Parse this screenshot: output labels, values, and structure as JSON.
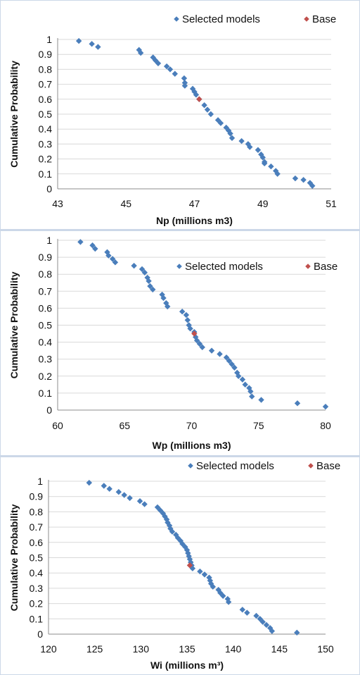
{
  "chart_data": [
    {
      "type": "scatter",
      "xlabel": "Np (millions m3)",
      "ylabel": "Cumulative Probability",
      "xlim": [
        43,
        51
      ],
      "ylim": [
        0,
        1
      ],
      "xticks": [
        "43",
        "45",
        "47",
        "49",
        "51"
      ],
      "yticks": [
        "0",
        "0.1",
        "0.2",
        "0.3",
        "0.4",
        "0.5",
        "0.6",
        "0.7",
        "0.8",
        "0.9",
        "1"
      ],
      "grid": "horizontal",
      "legend_position": "top-right",
      "series": [
        {
          "name": "Selected models",
          "color": "#4a7ebb",
          "points": [
            [
              43.62,
              0.99
            ],
            [
              44.0,
              0.97
            ],
            [
              44.18,
              0.95
            ],
            [
              45.38,
              0.93
            ],
            [
              45.43,
              0.91
            ],
            [
              45.79,
              0.88
            ],
            [
              45.86,
              0.86
            ],
            [
              45.94,
              0.84
            ],
            [
              46.19,
              0.82
            ],
            [
              46.29,
              0.8
            ],
            [
              46.43,
              0.77
            ],
            [
              46.7,
              0.74
            ],
            [
              46.72,
              0.71
            ],
            [
              46.72,
              0.69
            ],
            [
              46.95,
              0.67
            ],
            [
              47.0,
              0.65
            ],
            [
              47.05,
              0.63
            ],
            [
              47.14,
              0.6
            ],
            [
              47.29,
              0.56
            ],
            [
              47.38,
              0.53
            ],
            [
              47.48,
              0.5
            ],
            [
              47.69,
              0.46
            ],
            [
              47.77,
              0.44
            ],
            [
              47.93,
              0.41
            ],
            [
              48.0,
              0.39
            ],
            [
              48.05,
              0.37
            ],
            [
              48.1,
              0.34
            ],
            [
              48.38,
              0.32
            ],
            [
              48.57,
              0.3
            ],
            [
              48.62,
              0.28
            ],
            [
              48.86,
              0.26
            ],
            [
              48.95,
              0.23
            ],
            [
              49.0,
              0.21
            ],
            [
              49.05,
              0.18
            ],
            [
              49.05,
              0.17
            ],
            [
              49.24,
              0.15
            ],
            [
              49.38,
              0.12
            ],
            [
              49.43,
              0.1
            ],
            [
              49.95,
              0.07
            ],
            [
              50.19,
              0.06
            ],
            [
              50.38,
              0.04
            ],
            [
              50.45,
              0.02
            ]
          ]
        },
        {
          "name": "Base",
          "color": "#c0504d",
          "points": [
            [
              47.14,
              0.6
            ]
          ]
        }
      ]
    },
    {
      "type": "scatter",
      "xlabel": "Wp (millions m3)",
      "ylabel": "Cumulative Probability",
      "xlim": [
        60,
        80
      ],
      "ylim": [
        0,
        1
      ],
      "xticks": [
        "60",
        "65",
        "70",
        "75",
        "80"
      ],
      "yticks": [
        "0",
        "0.1",
        "0.2",
        "0.3",
        "0.4",
        "0.5",
        "0.6",
        "0.7",
        "0.8",
        "0.9",
        "1"
      ],
      "grid": "horizontal",
      "legend_position": "top-right",
      "series": [
        {
          "name": "Selected models",
          "color": "#4a7ebb",
          "points": [
            [
              61.7,
              0.99
            ],
            [
              62.6,
              0.97
            ],
            [
              62.8,
              0.95
            ],
            [
              63.7,
              0.93
            ],
            [
              63.8,
              0.91
            ],
            [
              64.1,
              0.89
            ],
            [
              64.3,
              0.87
            ],
            [
              65.7,
              0.85
            ],
            [
              66.3,
              0.83
            ],
            [
              66.5,
              0.81
            ],
            [
              66.7,
              0.78
            ],
            [
              66.8,
              0.76
            ],
            [
              66.9,
              0.73
            ],
            [
              67.1,
              0.71
            ],
            [
              67.8,
              0.68
            ],
            [
              67.9,
              0.66
            ],
            [
              68.1,
              0.63
            ],
            [
              68.2,
              0.61
            ],
            [
              69.3,
              0.58
            ],
            [
              69.6,
              0.56
            ],
            [
              69.7,
              0.53
            ],
            [
              69.8,
              0.5
            ],
            [
              69.9,
              0.48
            ],
            [
              70.2,
              0.46
            ],
            [
              70.3,
              0.43
            ],
            [
              70.4,
              0.41
            ],
            [
              70.6,
              0.39
            ],
            [
              70.8,
              0.37
            ],
            [
              71.5,
              0.35
            ],
            [
              72.1,
              0.33
            ],
            [
              72.6,
              0.31
            ],
            [
              72.8,
              0.29
            ],
            [
              73.0,
              0.27
            ],
            [
              73.2,
              0.25
            ],
            [
              73.4,
              0.22
            ],
            [
              73.5,
              0.2
            ],
            [
              73.8,
              0.18
            ],
            [
              74.0,
              0.15
            ],
            [
              74.3,
              0.13
            ],
            [
              74.4,
              0.11
            ],
            [
              74.5,
              0.08
            ],
            [
              75.2,
              0.06
            ],
            [
              77.9,
              0.04
            ],
            [
              80.0,
              0.02
            ]
          ]
        },
        {
          "name": "Base",
          "color": "#c0504d",
          "points": [
            [
              70.2,
              0.45
            ]
          ]
        }
      ]
    },
    {
      "type": "scatter",
      "xlabel": "Wi (millions m³)",
      "ylabel": "Cumulative Probability",
      "xlim": [
        120,
        150
      ],
      "ylim": [
        0,
        1
      ],
      "xticks": [
        "120",
        "125",
        "130",
        "135",
        "140",
        "145",
        "150"
      ],
      "yticks": [
        "0",
        "0.1",
        "0.2",
        "0.3",
        "0.4",
        "0.5",
        "0.6",
        "0.7",
        "0.8",
        "0.9",
        "1"
      ],
      "grid": "horizontal",
      "legend_position": "top-right",
      "series": [
        {
          "name": "Selected models",
          "color": "#4a7ebb",
          "points": [
            [
              124.4,
              0.99
            ],
            [
              126.0,
              0.97
            ],
            [
              126.6,
              0.95
            ],
            [
              127.6,
              0.93
            ],
            [
              128.2,
              0.91
            ],
            [
              128.8,
              0.89
            ],
            [
              129.9,
              0.87
            ],
            [
              130.4,
              0.85
            ],
            [
              131.8,
              0.83
            ],
            [
              132.1,
              0.81
            ],
            [
              132.4,
              0.79
            ],
            [
              132.6,
              0.77
            ],
            [
              132.8,
              0.75
            ],
            [
              132.9,
              0.73
            ],
            [
              133.1,
              0.71
            ],
            [
              133.2,
              0.69
            ],
            [
              133.4,
              0.67
            ],
            [
              133.8,
              0.65
            ],
            [
              134.0,
              0.63
            ],
            [
              134.3,
              0.61
            ],
            [
              134.5,
              0.59
            ],
            [
              134.8,
              0.57
            ],
            [
              135.0,
              0.55
            ],
            [
              135.1,
              0.53
            ],
            [
              135.2,
              0.51
            ],
            [
              135.3,
              0.49
            ],
            [
              135.4,
              0.47
            ],
            [
              135.5,
              0.45
            ],
            [
              135.6,
              0.43
            ],
            [
              136.4,
              0.41
            ],
            [
              136.9,
              0.39
            ],
            [
              137.4,
              0.37
            ],
            [
              137.5,
              0.35
            ],
            [
              137.6,
              0.33
            ],
            [
              137.8,
              0.31
            ],
            [
              138.4,
              0.29
            ],
            [
              138.6,
              0.27
            ],
            [
              138.9,
              0.25
            ],
            [
              139.4,
              0.23
            ],
            [
              139.5,
              0.21
            ],
            [
              141.0,
              0.16
            ],
            [
              141.5,
              0.14
            ],
            [
              142.5,
              0.12
            ],
            [
              142.9,
              0.1
            ],
            [
              143.2,
              0.08
            ],
            [
              143.6,
              0.06
            ],
            [
              144.0,
              0.04
            ],
            [
              144.2,
              0.02
            ],
            [
              146.9,
              0.01
            ]
          ]
        },
        {
          "name": "Base",
          "color": "#c0504d",
          "points": [
            [
              135.3,
              0.45
            ]
          ]
        }
      ]
    }
  ]
}
